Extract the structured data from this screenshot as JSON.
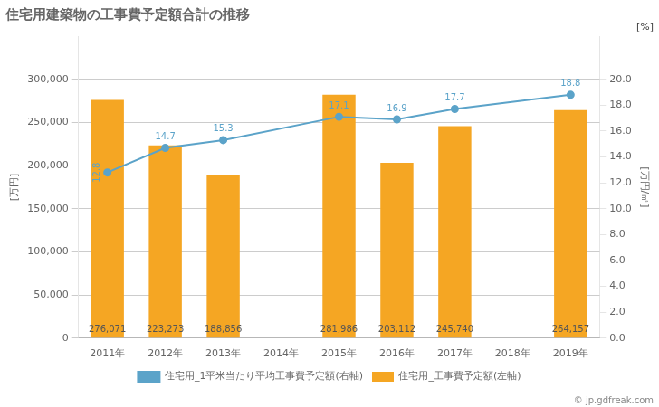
{
  "chart_data": {
    "type": "bar",
    "title": "住宅用建築物の工事費予定額合計の推移",
    "categories": [
      "2011年",
      "2012年",
      "2013年",
      "2014年",
      "2015年",
      "2016年",
      "2017年",
      "2018年",
      "2019年"
    ],
    "series": [
      {
        "name": "住宅用_工事費予定額(左軸)",
        "type": "bar",
        "color": "#F5A623",
        "values": [
          276071,
          223273,
          188856,
          null,
          281986,
          203112,
          245740,
          null,
          264157
        ],
        "value_labels": [
          "276,071",
          "223,273",
          "188,856",
          null,
          "281,986",
          "203,112",
          "245,740",
          null,
          "264,157"
        ]
      },
      {
        "name": "住宅用_1平米当たり平均工事費予定額(右軸)",
        "type": "line",
        "color": "#5BA3C9",
        "marker": "circle",
        "axis": "y2",
        "values": [
          12.8,
          14.7,
          15.3,
          null,
          17.1,
          16.9,
          17.7,
          null,
          18.8
        ]
      }
    ],
    "ylabel": "[万円]",
    "y2label": "[万円/㎡]",
    "ylim": [
      0,
      350000
    ],
    "yticks": [
      0,
      {
        "value": 50000,
        "label": "50,000"
      },
      {
        "value": 100000,
        "label": "100,000"
      },
      {
        "value": 150000,
        "label": "150,000"
      },
      {
        "value": 200000,
        "label": "200,000"
      },
      {
        "value": 250000,
        "label": "250,000"
      },
      {
        "value": 300000,
        "label": "300,000"
      }
    ],
    "y2lim": [
      0,
      23.33
    ],
    "y2ticks": [
      {
        "value": 0,
        "label": "0.0"
      },
      {
        "value": 2,
        "label": "2.0"
      },
      {
        "value": 4,
        "label": "4.0"
      },
      {
        "value": 6,
        "label": "6.0"
      },
      {
        "value": 8,
        "label": "8.0"
      },
      {
        "value": 10,
        "label": "10.0"
      },
      {
        "value": 12,
        "label": "12.0"
      },
      {
        "value": 14,
        "label": "14.0"
      },
      {
        "value": 16,
        "label": "16.0"
      },
      {
        "value": 18,
        "label": "18.0"
      },
      {
        "value": 20,
        "label": "20.0"
      }
    ],
    "grid": true,
    "legend": "bottom",
    "data_labels": true,
    "annotations": [
      "[%]",
      "© jp.gdfreak.com"
    ]
  }
}
